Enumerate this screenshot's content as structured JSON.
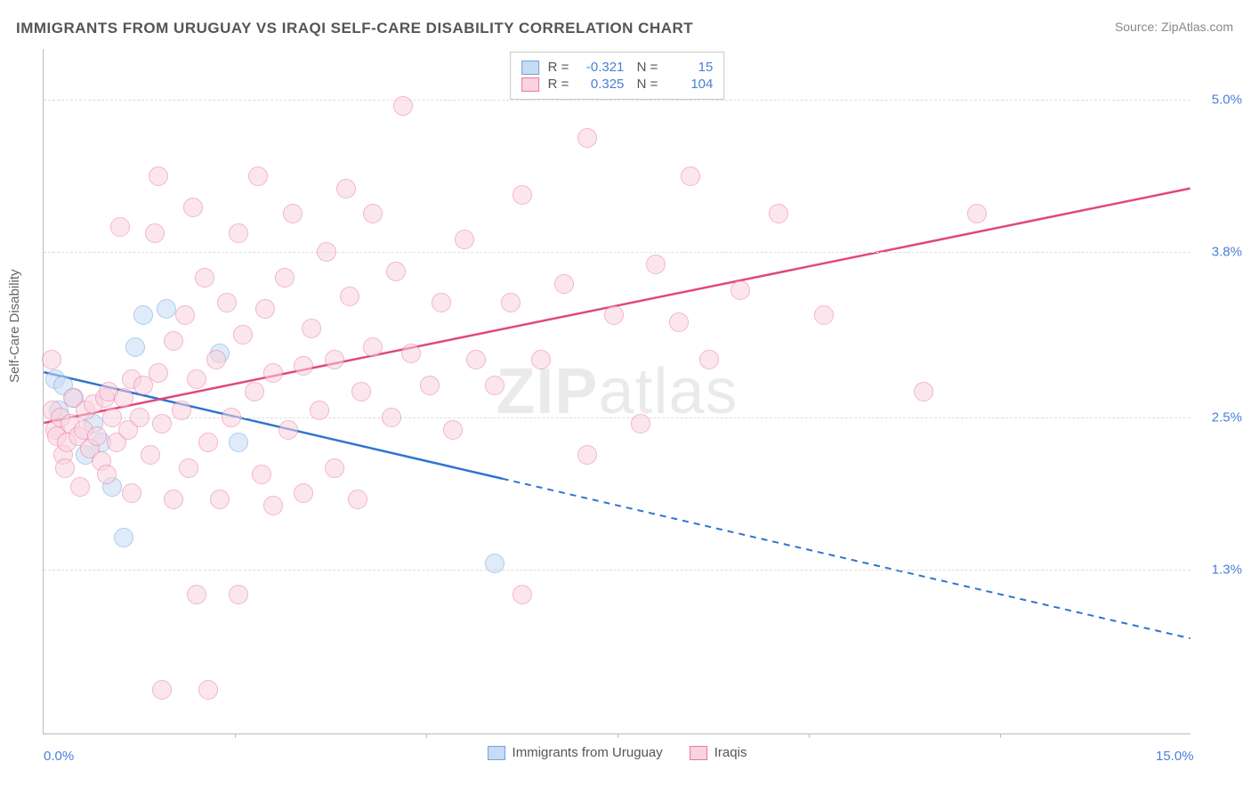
{
  "title": "IMMIGRANTS FROM URUGUAY VS IRAQI SELF-CARE DISABILITY CORRELATION CHART",
  "source_label": "Source: ZipAtlas.com",
  "ylabel": "Self-Care Disability",
  "watermark_bold": "ZIP",
  "watermark_light": "atlas",
  "chart": {
    "type": "scatter",
    "xlim": [
      0.0,
      15.0
    ],
    "ylim": [
      0.0,
      5.4
    ],
    "x_ticks": [
      {
        "v": 0.0,
        "label": "0.0%"
      },
      {
        "v": 15.0,
        "label": "15.0%"
      }
    ],
    "x_tick_marks": [
      2.5,
      5.0,
      7.5,
      10.0,
      12.5
    ],
    "y_grid": [
      {
        "v": 1.3,
        "label": "1.3%"
      },
      {
        "v": 2.5,
        "label": "2.5%"
      },
      {
        "v": 3.8,
        "label": "3.8%"
      },
      {
        "v": 5.0,
        "label": "5.0%"
      }
    ],
    "background_color": "#ffffff",
    "grid_color": "#dddddd",
    "axis_color": "#bbbbbb",
    "tick_label_color": "#4a7fd8"
  },
  "series": [
    {
      "name": "Immigrants from Uruguay",
      "fill": "#c6dbf4",
      "border": "#6fa3e0",
      "line_color": "#2f74d0",
      "R": "-0.321",
      "N": "15",
      "trend": {
        "x1": 0.0,
        "y1": 2.85,
        "x2": 15.0,
        "y2": 0.75,
        "solid_until_x": 6.0
      },
      "points": [
        {
          "x": 0.15,
          "y": 2.8
        },
        {
          "x": 0.2,
          "y": 2.55
        },
        {
          "x": 0.25,
          "y": 2.75
        },
        {
          "x": 0.4,
          "y": 2.65
        },
        {
          "x": 0.55,
          "y": 2.2
        },
        {
          "x": 0.65,
          "y": 2.45
        },
        {
          "x": 0.75,
          "y": 2.3
        },
        {
          "x": 0.9,
          "y": 1.95
        },
        {
          "x": 1.05,
          "y": 1.55
        },
        {
          "x": 1.2,
          "y": 3.05
        },
        {
          "x": 1.3,
          "y": 3.3
        },
        {
          "x": 1.6,
          "y": 3.35
        },
        {
          "x": 2.3,
          "y": 3.0
        },
        {
          "x": 2.55,
          "y": 2.3
        },
        {
          "x": 5.9,
          "y": 1.35
        }
      ]
    },
    {
      "name": "Iraqis",
      "fill": "#fad3df",
      "border": "#e77aa0",
      "line_color": "#e0487d",
      "R": "0.325",
      "N": "104",
      "trend": {
        "x1": 0.0,
        "y1": 2.45,
        "x2": 15.0,
        "y2": 4.3,
        "solid_until_x": 15.0
      },
      "points": [
        {
          "x": 0.1,
          "y": 2.95
        },
        {
          "x": 0.12,
          "y": 2.55
        },
        {
          "x": 0.15,
          "y": 2.4
        },
        {
          "x": 0.18,
          "y": 2.35
        },
        {
          "x": 0.22,
          "y": 2.5
        },
        {
          "x": 0.25,
          "y": 2.2
        },
        {
          "x": 0.28,
          "y": 2.1
        },
        {
          "x": 0.3,
          "y": 2.3
        },
        {
          "x": 0.35,
          "y": 2.45
        },
        {
          "x": 0.38,
          "y": 2.65
        },
        {
          "x": 0.45,
          "y": 2.35
        },
        {
          "x": 0.48,
          "y": 1.95
        },
        {
          "x": 0.52,
          "y": 2.4
        },
        {
          "x": 0.55,
          "y": 2.55
        },
        {
          "x": 0.6,
          "y": 2.25
        },
        {
          "x": 0.65,
          "y": 2.6
        },
        {
          "x": 0.7,
          "y": 2.35
        },
        {
          "x": 0.75,
          "y": 2.15
        },
        {
          "x": 0.8,
          "y": 2.65
        },
        {
          "x": 0.82,
          "y": 2.05
        },
        {
          "x": 0.85,
          "y": 2.7
        },
        {
          "x": 0.9,
          "y": 2.5
        },
        {
          "x": 0.95,
          "y": 2.3
        },
        {
          "x": 1.0,
          "y": 4.0
        },
        {
          "x": 1.05,
          "y": 2.65
        },
        {
          "x": 1.1,
          "y": 2.4
        },
        {
          "x": 1.15,
          "y": 2.8
        },
        {
          "x": 1.15,
          "y": 1.9
        },
        {
          "x": 1.25,
          "y": 2.5
        },
        {
          "x": 1.3,
          "y": 2.75
        },
        {
          "x": 1.4,
          "y": 2.2
        },
        {
          "x": 1.45,
          "y": 3.95
        },
        {
          "x": 1.5,
          "y": 2.85
        },
        {
          "x": 1.5,
          "y": 4.4
        },
        {
          "x": 1.55,
          "y": 2.45
        },
        {
          "x": 1.55,
          "y": 0.35
        },
        {
          "x": 1.7,
          "y": 3.1
        },
        {
          "x": 1.7,
          "y": 1.85
        },
        {
          "x": 1.8,
          "y": 2.55
        },
        {
          "x": 1.85,
          "y": 3.3
        },
        {
          "x": 1.9,
          "y": 2.1
        },
        {
          "x": 1.95,
          "y": 4.15
        },
        {
          "x": 2.0,
          "y": 2.8
        },
        {
          "x": 2.0,
          "y": 1.1
        },
        {
          "x": 2.1,
          "y": 3.6
        },
        {
          "x": 2.15,
          "y": 2.3
        },
        {
          "x": 2.15,
          "y": 0.35
        },
        {
          "x": 2.25,
          "y": 2.95
        },
        {
          "x": 2.3,
          "y": 1.85
        },
        {
          "x": 2.4,
          "y": 3.4
        },
        {
          "x": 2.45,
          "y": 2.5
        },
        {
          "x": 2.55,
          "y": 3.95
        },
        {
          "x": 2.55,
          "y": 1.1
        },
        {
          "x": 2.6,
          "y": 3.15
        },
        {
          "x": 2.75,
          "y": 2.7
        },
        {
          "x": 2.8,
          "y": 4.4
        },
        {
          "x": 2.85,
          "y": 2.05
        },
        {
          "x": 2.9,
          "y": 3.35
        },
        {
          "x": 3.0,
          "y": 2.85
        },
        {
          "x": 3.0,
          "y": 1.8
        },
        {
          "x": 3.15,
          "y": 3.6
        },
        {
          "x": 3.2,
          "y": 2.4
        },
        {
          "x": 3.25,
          "y": 4.1
        },
        {
          "x": 3.4,
          "y": 2.9
        },
        {
          "x": 3.4,
          "y": 1.9
        },
        {
          "x": 3.5,
          "y": 3.2
        },
        {
          "x": 3.6,
          "y": 2.55
        },
        {
          "x": 3.7,
          "y": 3.8
        },
        {
          "x": 3.8,
          "y": 2.1
        },
        {
          "x": 3.8,
          "y": 2.95
        },
        {
          "x": 3.95,
          "y": 4.3
        },
        {
          "x": 4.0,
          "y": 3.45
        },
        {
          "x": 4.1,
          "y": 1.85
        },
        {
          "x": 4.15,
          "y": 2.7
        },
        {
          "x": 4.3,
          "y": 4.1
        },
        {
          "x": 4.3,
          "y": 3.05
        },
        {
          "x": 4.55,
          "y": 2.5
        },
        {
          "x": 4.6,
          "y": 3.65
        },
        {
          "x": 4.7,
          "y": 4.95
        },
        {
          "x": 4.8,
          "y": 3.0
        },
        {
          "x": 5.05,
          "y": 2.75
        },
        {
          "x": 5.2,
          "y": 3.4
        },
        {
          "x": 5.35,
          "y": 2.4
        },
        {
          "x": 5.5,
          "y": 3.9
        },
        {
          "x": 5.65,
          "y": 2.95
        },
        {
          "x": 5.9,
          "y": 2.75
        },
        {
          "x": 6.1,
          "y": 3.4
        },
        {
          "x": 6.25,
          "y": 4.25
        },
        {
          "x": 6.25,
          "y": 1.1
        },
        {
          "x": 6.5,
          "y": 2.95
        },
        {
          "x": 6.8,
          "y": 3.55
        },
        {
          "x": 7.1,
          "y": 4.7
        },
        {
          "x": 7.1,
          "y": 2.2
        },
        {
          "x": 7.45,
          "y": 3.3
        },
        {
          "x": 7.8,
          "y": 2.45
        },
        {
          "x": 8.0,
          "y": 3.7
        },
        {
          "x": 8.3,
          "y": 3.25
        },
        {
          "x": 8.45,
          "y": 4.4
        },
        {
          "x": 8.7,
          "y": 2.95
        },
        {
          "x": 9.1,
          "y": 3.5
        },
        {
          "x": 9.6,
          "y": 4.1
        },
        {
          "x": 10.2,
          "y": 3.3
        },
        {
          "x": 11.5,
          "y": 2.7
        },
        {
          "x": 12.2,
          "y": 4.1
        }
      ]
    }
  ],
  "legend_bottom": [
    {
      "label": "Immigrants from Uruguay",
      "fill": "#c6dbf4",
      "border": "#6fa3e0"
    },
    {
      "label": "Iraqis",
      "fill": "#fad3df",
      "border": "#e77aa0"
    }
  ]
}
